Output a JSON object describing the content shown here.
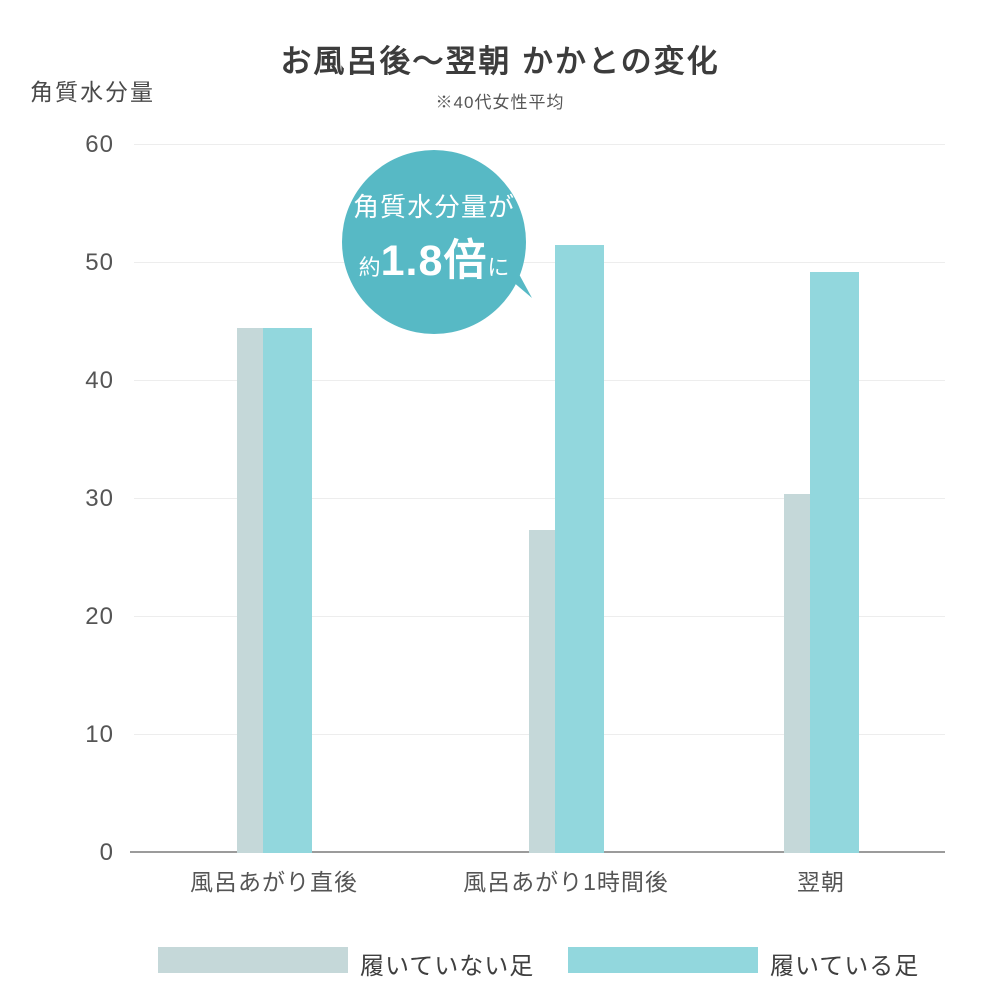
{
  "title": "お風呂後〜翌朝 かかとの変化",
  "subtitle": "※40代女性平均",
  "y_axis_title": "角質水分量",
  "bubble": {
    "line1": "角質水分量が",
    "prefix": "約",
    "highlight": "1.8倍",
    "suffix": "に",
    "color": "#57b9c5"
  },
  "colors": {
    "not_wearing": "#c5d8d9",
    "wearing": "#92d7dd",
    "grid": "#ededed",
    "zero_axis": "#9b9b9b",
    "text": "#555555"
  },
  "legend": {
    "items": [
      {
        "label": "履いていない足",
        "color": "#c5d8d9"
      },
      {
        "label": "履いている足",
        "color": "#92d7dd"
      }
    ]
  },
  "chart_data": {
    "type": "bar",
    "categories": [
      "風呂あがり直後",
      "風呂あがり1時間後",
      "翌朝"
    ],
    "series": [
      {
        "name": "履いていない足",
        "values": [
          44.5,
          27.4,
          30.4
        ],
        "color": "#c5d8d9"
      },
      {
        "name": "履いている足",
        "values": [
          44.5,
          51.5,
          49.2
        ],
        "color": "#92d7dd"
      }
    ],
    "title": "お風呂後〜翌朝 かかとの変化",
    "subtitle": "※40代女性平均",
    "xlabel": "",
    "ylabel": "角質水分量",
    "ylim": [
      0,
      60
    ],
    "yticks": [
      0,
      10,
      20,
      30,
      40,
      50,
      60
    ],
    "grid": true,
    "legend_position": "bottom",
    "annotation": "角質水分量が約1.8倍に"
  }
}
